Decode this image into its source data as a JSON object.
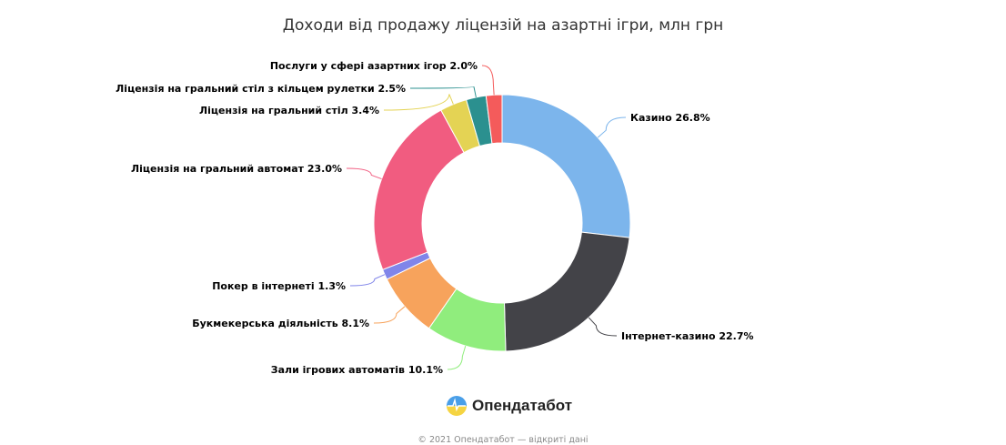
{
  "chart_data": {
    "type": "pie",
    "variant": "donut",
    "title": "Доходи від продажу ліцензій на азартні ігри, млн грн",
    "slices": [
      {
        "name": "Казино",
        "percent": 26.8,
        "color": "#7cb5ec"
      },
      {
        "name": "Інтернет-казино",
        "percent": 22.7,
        "color": "#434348"
      },
      {
        "name": "Зали ігрових автоматів",
        "percent": 10.1,
        "color": "#90ed7d"
      },
      {
        "name": "Букмекерська діяльність",
        "percent": 8.1,
        "color": "#f7a35c"
      },
      {
        "name": "Покер в інтернеті",
        "percent": 1.3,
        "color": "#8085e9"
      },
      {
        "name": "Ліцензія на гральний автомат",
        "percent": 23.0,
        "color": "#f15c80"
      },
      {
        "name": "Ліцензія на гральний стіл",
        "percent": 3.4,
        "color": "#e4d354"
      },
      {
        "name": "Ліцензія на гральний стіл з кільцем рулетки",
        "percent": 2.5,
        "color": "#2b908f"
      },
      {
        "name": "Послуги у сфері азартних ігор",
        "percent": 2.0,
        "color": "#f45b5b"
      }
    ]
  },
  "logo": {
    "text": "Опендатабот"
  },
  "footer": {
    "text": "© 2021 Опендатабот — відкриті дані"
  }
}
